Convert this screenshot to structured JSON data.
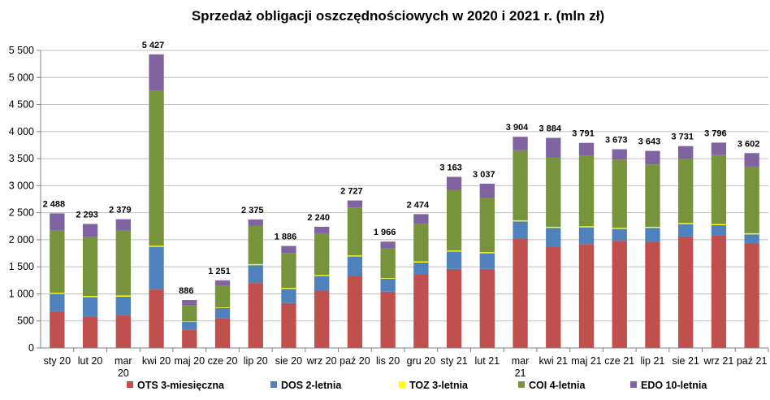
{
  "chart_data": {
    "type": "bar",
    "stacked": true,
    "title": "Sprzedaż obligacji oszczędnościowych w 2020 i 2021 r. (mln zł)",
    "xlabel": "",
    "ylabel": "",
    "ylim": [
      0,
      5500
    ],
    "y_ticks": [
      "0",
      "500",
      "1 000",
      "1 500",
      "2 000",
      "2 500",
      "3 000",
      "3 500",
      "4 000",
      "4 500",
      "5 000",
      "5 500"
    ],
    "y_tick_values": [
      0,
      500,
      1000,
      1500,
      2000,
      2500,
      3000,
      3500,
      4000,
      4500,
      5000,
      5500
    ],
    "grid": true,
    "legend_position": "bottom",
    "categories": [
      "sty 20",
      "lut 20",
      "mar 20",
      "kwi 20",
      "maj 20",
      "cze 20",
      "lip 20",
      "sie 20",
      "wrz 20",
      "paź 20",
      "lis 20",
      "gru 20",
      "sty 21",
      "lut 21",
      "mar 21",
      "kwi 21",
      "maj 21",
      "cze 21",
      "lip 21",
      "sie 21",
      "wrz 21",
      "paź 21"
    ],
    "totals": [
      2488,
      2293,
      2379,
      5427,
      886,
      1251,
      2375,
      1886,
      2240,
      2727,
      1966,
      2474,
      3163,
      3037,
      3904,
      3884,
      3791,
      3673,
      3643,
      3731,
      3796,
      3602
    ],
    "total_labels": [
      "2 488",
      "2 293",
      "2 379",
      "5 427",
      "886",
      "1 251",
      "2 375",
      "1 886",
      "2 240",
      "2 727",
      "1 966",
      "2 474",
      "3 163",
      "3 037",
      "3 904",
      "3 884",
      "3 791",
      "3 673",
      "3 643",
      "3 731",
      "3 796",
      "3 602"
    ],
    "series": [
      {
        "name": "OTS 3-miesięczna",
        "color": "#C0504D",
        "values": [
          680,
          580,
          610,
          1080,
          340,
          550,
          1200,
          830,
          1060,
          1330,
          1040,
          1360,
          1460,
          1460,
          2020,
          1870,
          1920,
          1980,
          1960,
          2060,
          2080,
          1940
        ]
      },
      {
        "name": "DOS 2-letnia",
        "color": "#4F81BD",
        "values": [
          320,
          360,
          340,
          790,
          140,
          190,
          330,
          260,
          270,
          360,
          240,
          220,
          320,
          290,
          320,
          350,
          310,
          220,
          260,
          230,
          190,
          160
        ]
      },
      {
        "name": "TOZ 3-letnia",
        "color": "#FFFF00",
        "values": [
          20,
          20,
          20,
          20,
          10,
          10,
          20,
          20,
          20,
          20,
          10,
          20,
          20,
          20,
          20,
          20,
          20,
          20,
          20,
          20,
          20,
          20
        ]
      },
      {
        "name": "COI 4-letnia",
        "color": "#77933C",
        "values": [
          1148,
          1093,
          1199,
          2867,
          296,
          406,
          705,
          646,
          770,
          887,
          546,
          694,
          1123,
          997,
          1294,
          1284,
          1311,
          1263,
          1153,
          1191,
          1276,
          1232
        ]
      },
      {
        "name": "EDO 10-letnia",
        "color": "#8064A2",
        "values": [
          320,
          240,
          210,
          670,
          100,
          95,
          120,
          130,
          120,
          130,
          130,
          180,
          240,
          270,
          250,
          360,
          230,
          190,
          250,
          230,
          230,
          250
        ]
      }
    ]
  }
}
